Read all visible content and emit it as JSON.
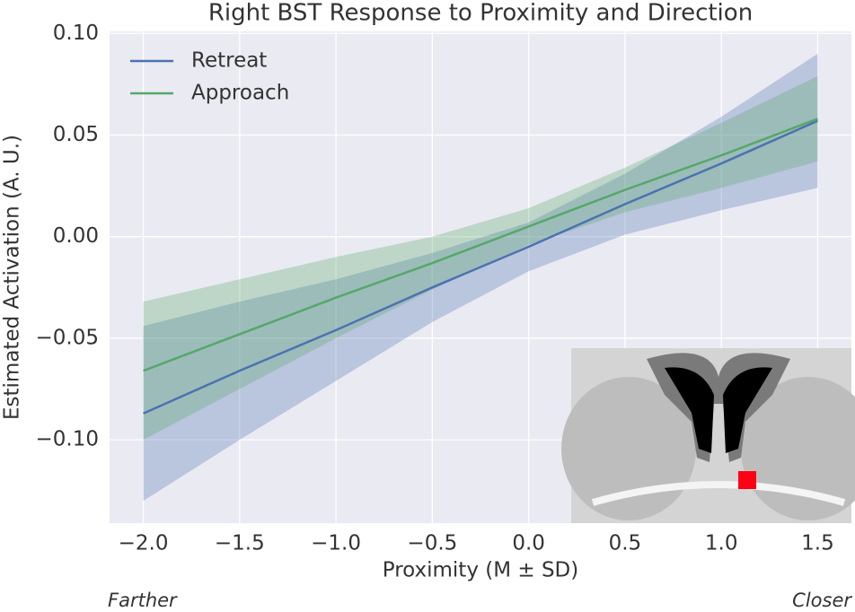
{
  "chart_data": {
    "type": "line",
    "title": "Right BST Response to Proximity and Direction",
    "xlabel": "Proximity (M ± SD)",
    "ylabel": "Estimated Activation (A. U.)",
    "annotations": [
      "Farther",
      "Closer"
    ],
    "x": [
      -2.0,
      -1.5,
      -1.0,
      -0.5,
      0.0,
      0.5,
      1.0,
      1.5
    ],
    "series": [
      {
        "name": "Retreat",
        "color": "#4c72b0",
        "values": [
          -0.087,
          -0.066,
          -0.046,
          -0.025,
          -0.005,
          0.016,
          0.036,
          0.057
        ],
        "lower": [
          -0.13,
          -0.1,
          -0.071,
          -0.042,
          -0.017,
          0.001,
          0.013,
          0.024
        ],
        "upper": [
          -0.044,
          -0.032,
          -0.021,
          -0.008,
          0.007,
          0.031,
          0.059,
          0.09
        ]
      },
      {
        "name": "Approach",
        "color": "#55a868",
        "values": [
          -0.066,
          -0.048,
          -0.03,
          -0.013,
          0.005,
          0.023,
          0.04,
          0.058
        ],
        "lower": [
          -0.1,
          -0.075,
          -0.05,
          -0.026,
          -0.004,
          0.012,
          0.024,
          0.037
        ],
        "upper": [
          -0.032,
          -0.021,
          -0.01,
          0.0,
          0.014,
          0.034,
          0.056,
          0.079
        ]
      }
    ],
    "xlim": [
      -2.175,
      1.675
    ],
    "ylim": [
      -0.141,
      0.101
    ],
    "xticks": [
      {
        "value": -2.0,
        "label": "−2.0"
      },
      {
        "value": -1.5,
        "label": "−1.5"
      },
      {
        "value": -1.0,
        "label": "−1.0"
      },
      {
        "value": -0.5,
        "label": "−0.5"
      },
      {
        "value": 0.0,
        "label": "0.0"
      },
      {
        "value": 0.5,
        "label": "0.5"
      },
      {
        "value": 1.0,
        "label": "1.0"
      },
      {
        "value": 1.5,
        "label": "1.5"
      }
    ],
    "yticks": [
      {
        "value": -0.1,
        "label": "−0.10"
      },
      {
        "value": -0.05,
        "label": "−0.05"
      },
      {
        "value": 0.0,
        "label": "0.00"
      },
      0.05,
      {
        "value": 0.1,
        "label": "0.10"
      }
    ],
    "grid": true,
    "legend": "upper left"
  }
}
